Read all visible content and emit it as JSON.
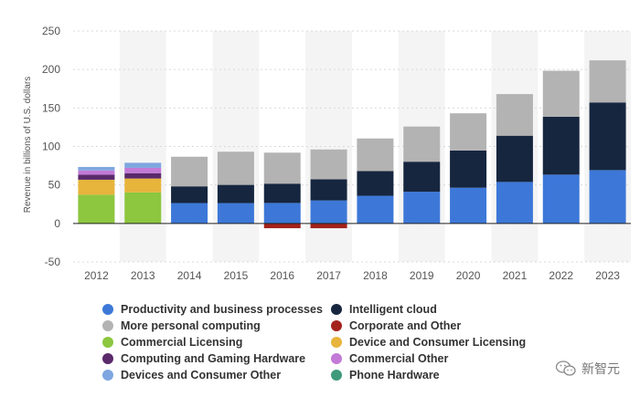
{
  "chart_data": {
    "type": "bar",
    "stacked": true,
    "title": "",
    "xlabel": "",
    "ylabel": "Revenue in billions of U.S. dollars",
    "ylim": [
      -50,
      250
    ],
    "yticks": [
      250,
      200,
      150,
      100,
      50,
      0,
      -50
    ],
    "grid": "horizontal",
    "legend_position": "bottom",
    "categories": [
      "2012",
      "2013",
      "2014",
      "2015",
      "2016",
      "2017",
      "2018",
      "2019",
      "2020",
      "2021",
      "2022",
      "2023"
    ],
    "series": [
      {
        "name": "Productivity and business processes",
        "color": "#3d78d8",
        "values": [
          0,
          0,
          26.5,
          26.4,
          26.6,
          29.9,
          35.9,
          41.2,
          46.4,
          53.9,
          63.4,
          69.3
        ]
      },
      {
        "name": "Intelligent cloud",
        "color": "#16263f",
        "values": [
          0,
          0,
          21.7,
          23.7,
          25.1,
          27.4,
          32.2,
          39.0,
          48.4,
          60.1,
          75.3,
          87.9
        ]
      },
      {
        "name": "More personal computing",
        "color": "#b3b3b3",
        "values": [
          0,
          0,
          38.5,
          43.1,
          40.3,
          38.8,
          42.3,
          45.7,
          48.3,
          54.1,
          59.7,
          54.7
        ]
      },
      {
        "name": "Corporate and Other",
        "color": "#a3221b",
        "values": [
          0,
          0,
          0,
          0,
          -6.2,
          -6.2,
          0,
          0,
          0,
          0,
          0,
          0
        ]
      },
      {
        "name": "Commercial Licensing",
        "color": "#8dc63f",
        "values": [
          37.3,
          40.4,
          0,
          0,
          0,
          0,
          0,
          0,
          0,
          0,
          0,
          0
        ]
      },
      {
        "name": "Device and Consumer Licensing",
        "color": "#e7b43c",
        "values": [
          19.5,
          18.0,
          0,
          0,
          0,
          0,
          0,
          0,
          0,
          0,
          0,
          0
        ]
      },
      {
        "name": "Computing and Gaming Hardware",
        "color": "#5a2a6b",
        "values": [
          6.5,
          6.9,
          0,
          0,
          0,
          0,
          0,
          0,
          0,
          0,
          0,
          0
        ]
      },
      {
        "name": "Commercial Other",
        "color": "#c27ad6",
        "values": [
          5.6,
          6.9,
          0,
          0,
          0,
          0,
          0,
          0,
          0,
          0,
          0,
          0
        ]
      },
      {
        "name": "Devices and Consumer Other",
        "color": "#7ea6e0",
        "values": [
          4.5,
          6.6,
          0,
          0,
          0,
          0,
          0,
          0,
          0,
          0,
          0,
          0
        ]
      },
      {
        "name": "Phone Hardware",
        "color": "#3f9a7c",
        "values": [
          0,
          0,
          0,
          0,
          0,
          0,
          0,
          0,
          0,
          0,
          0,
          0
        ]
      }
    ],
    "legend_order": [
      0,
      1,
      2,
      3,
      4,
      5,
      6,
      7,
      8,
      9
    ]
  },
  "watermark": {
    "text": "新智元",
    "icon": "wechat-icon"
  }
}
